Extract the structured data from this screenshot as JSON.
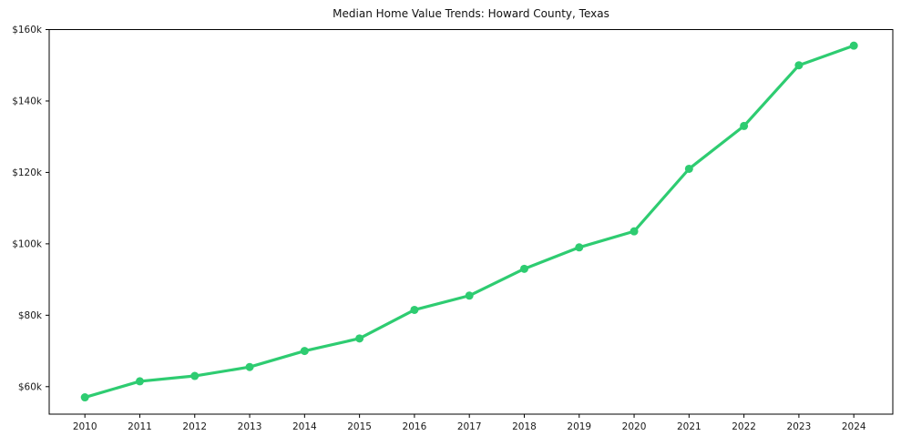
{
  "chart_data": {
    "type": "line",
    "title": "Median Home Value Trends: Howard County, Texas",
    "xlabel": "",
    "ylabel": "",
    "grid": false,
    "legend": "none",
    "line_color": "#2ecc71",
    "marker": "circle",
    "axis_color": "#000000",
    "text_color": "#1a1a1a",
    "background_color": "#ffffff",
    "x": [
      2010,
      2011,
      2012,
      2013,
      2014,
      2015,
      2016,
      2017,
      2018,
      2019,
      2020,
      2021,
      2022,
      2023,
      2024
    ],
    "series": [
      {
        "name": "Median Home Value",
        "values_usd": [
          57000,
          61500,
          63000,
          65500,
          70000,
          73500,
          81500,
          85500,
          93000,
          99000,
          103500,
          121000,
          133000,
          150000,
          155500
        ]
      }
    ],
    "xticks": [
      {
        "value": 2010,
        "label": "2010"
      },
      {
        "value": 2011,
        "label": "2011"
      },
      {
        "value": 2012,
        "label": "2012"
      },
      {
        "value": 2013,
        "label": "2013"
      },
      {
        "value": 2014,
        "label": "2014"
      },
      {
        "value": 2015,
        "label": "2015"
      },
      {
        "value": 2016,
        "label": "2016"
      },
      {
        "value": 2017,
        "label": "2017"
      },
      {
        "value": 2018,
        "label": "2018"
      },
      {
        "value": 2019,
        "label": "2019"
      },
      {
        "value": 2020,
        "label": "2020"
      },
      {
        "value": 2021,
        "label": "2021"
      },
      {
        "value": 2022,
        "label": "2022"
      },
      {
        "value": 2023,
        "label": "2023"
      },
      {
        "value": 2024,
        "label": "2024"
      }
    ],
    "yticks": [
      {
        "value": 60000,
        "label": "$60k"
      },
      {
        "value": 80000,
        "label": "$80k"
      },
      {
        "value": 100000,
        "label": "$100k"
      },
      {
        "value": 120000,
        "label": "$120k"
      },
      {
        "value": 140000,
        "label": "$140k"
      },
      {
        "value": 160000,
        "label": "$160k"
      }
    ],
    "xlim": [
      2009.35,
      2024.71
    ],
    "ylim": [
      52300,
      160000
    ]
  }
}
